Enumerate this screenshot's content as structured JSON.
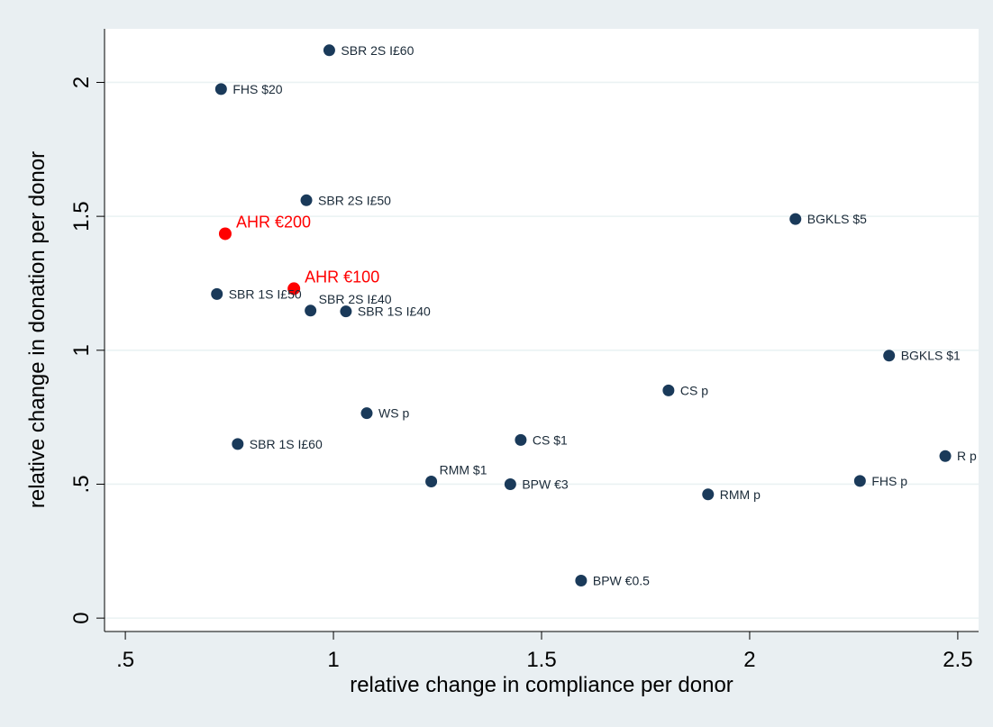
{
  "chart_data": {
    "type": "scatter",
    "title": "",
    "xlabel": "relative change in compliance per donor",
    "ylabel": "relative change in donation per donor",
    "xlim": [
      0.45,
      2.55
    ],
    "ylim": [
      -0.05,
      2.2
    ],
    "x_ticks": [
      ".5",
      "1",
      "1.5",
      "2",
      "2.5"
    ],
    "x_tick_values": [
      0.5,
      1,
      1.5,
      2,
      2.5
    ],
    "y_ticks": [
      "0",
      ".5",
      "1",
      "1.5",
      "2"
    ],
    "y_tick_values": [
      0,
      0.5,
      1,
      1.5,
      2
    ],
    "grid": "horizontal",
    "legend": "none",
    "colors": {
      "default": "#1a3a5a",
      "highlight": "#ff0000",
      "background": "#e9eff2",
      "plot": "#ffffff",
      "grid": "#eaf2f3"
    },
    "points": [
      {
        "label": "SBR 2S I£60",
        "x": 0.99,
        "y": 2.12,
        "highlight": false,
        "pos": "right"
      },
      {
        "label": "FHS $20",
        "x": 0.73,
        "y": 1.975,
        "highlight": false,
        "pos": "right"
      },
      {
        "label": "SBR 2S I£50",
        "x": 0.935,
        "y": 1.56,
        "highlight": false,
        "pos": "right"
      },
      {
        "label": "AHR €200",
        "x": 0.74,
        "y": 1.435,
        "highlight": true,
        "pos": "right"
      },
      {
        "label": "AHR €100",
        "x": 0.905,
        "y": 1.23,
        "highlight": true,
        "pos": "right"
      },
      {
        "label": "SBR 1S I£50",
        "x": 0.72,
        "y": 1.21,
        "highlight": false,
        "pos": "right"
      },
      {
        "label": "SBR 2S I£40",
        "x": 0.945,
        "y": 1.148,
        "highlight": false,
        "pos": "upper-right"
      },
      {
        "label": "SBR 1S I£40",
        "x": 1.03,
        "y": 1.145,
        "highlight": false,
        "pos": "right"
      },
      {
        "label": "BGKLS $5",
        "x": 2.11,
        "y": 1.49,
        "highlight": false,
        "pos": "right"
      },
      {
        "label": "BGKLS $1",
        "x": 2.335,
        "y": 0.98,
        "highlight": false,
        "pos": "right"
      },
      {
        "label": "CS p",
        "x": 1.805,
        "y": 0.85,
        "highlight": false,
        "pos": "right"
      },
      {
        "label": "WS p",
        "x": 1.08,
        "y": 0.765,
        "highlight": false,
        "pos": "right"
      },
      {
        "label": "SBR 1S I£60",
        "x": 0.77,
        "y": 0.65,
        "highlight": false,
        "pos": "right"
      },
      {
        "label": "CS $1",
        "x": 1.45,
        "y": 0.665,
        "highlight": false,
        "pos": "right"
      },
      {
        "label": "R p",
        "x": 2.47,
        "y": 0.605,
        "highlight": false,
        "pos": "right"
      },
      {
        "label": "RMM $1",
        "x": 1.235,
        "y": 0.51,
        "highlight": false,
        "pos": "upper-right"
      },
      {
        "label": "BPW €3",
        "x": 1.425,
        "y": 0.5,
        "highlight": false,
        "pos": "right"
      },
      {
        "label": "FHS p",
        "x": 2.265,
        "y": 0.512,
        "highlight": false,
        "pos": "right"
      },
      {
        "label": "RMM p",
        "x": 1.9,
        "y": 0.462,
        "highlight": false,
        "pos": "right"
      },
      {
        "label": "BPW €0.5",
        "x": 1.595,
        "y": 0.14,
        "highlight": false,
        "pos": "right"
      }
    ]
  }
}
